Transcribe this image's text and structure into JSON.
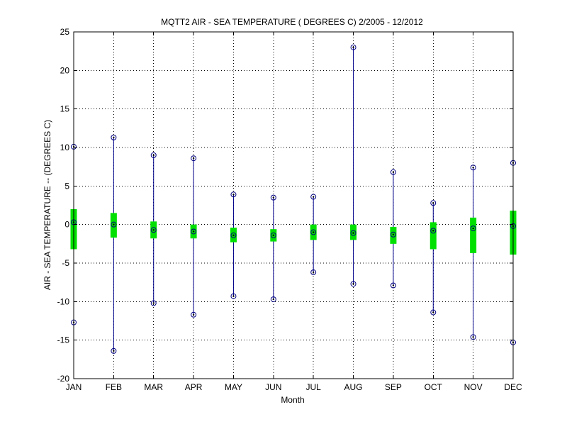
{
  "chart_data": {
    "type": "box",
    "title": "MQTT2  AIR - SEA TEMPERATURE ( DEGREES C) 2/2005 - 12/2012",
    "xlabel": "Month",
    "ylabel": "AIR - SEA TEMPERATURE -- (DEGREES C)",
    "ylim": [
      -20,
      25
    ],
    "yticks": [
      25,
      20,
      15,
      10,
      5,
      0,
      -5,
      -10,
      -15,
      -20
    ],
    "grid": true,
    "categories": [
      "JAN",
      "FEB",
      "MAR",
      "APR",
      "MAY",
      "JUN",
      "JUL",
      "AUG",
      "SEP",
      "OCT",
      "NOV",
      "DEC"
    ],
    "series": [
      {
        "stat": "max",
        "values": [
          10.1,
          11.3,
          9.0,
          8.6,
          3.9,
          3.5,
          3.6,
          23.0,
          6.8,
          2.8,
          7.4,
          8.0
        ]
      },
      {
        "stat": "q3",
        "values": [
          2.0,
          1.5,
          0.4,
          0.0,
          -0.4,
          -0.6,
          0.0,
          0.0,
          -0.3,
          0.3,
          0.9,
          1.8
        ]
      },
      {
        "stat": "median",
        "values": [
          0.3,
          0.0,
          -0.7,
          -0.9,
          -1.4,
          -1.4,
          -1.0,
          -1.1,
          -1.3,
          -0.8,
          -0.5,
          -0.2
        ]
      },
      {
        "stat": "q1",
        "values": [
          -3.2,
          -1.7,
          -1.8,
          -1.8,
          -2.3,
          -2.2,
          -2.0,
          -2.0,
          -2.5,
          -3.2,
          -3.7,
          -3.9
        ]
      },
      {
        "stat": "min",
        "values": [
          -12.7,
          -16.4,
          -10.2,
          -11.7,
          -9.3,
          -9.7,
          -6.2,
          -7.7,
          -7.9,
          -11.4,
          -14.6,
          -15.3
        ]
      }
    ],
    "colors": {
      "whisker": "#00008b",
      "box": "#00e000",
      "marker": "#000080",
      "grid": "#000000",
      "axis": "#000000"
    }
  }
}
